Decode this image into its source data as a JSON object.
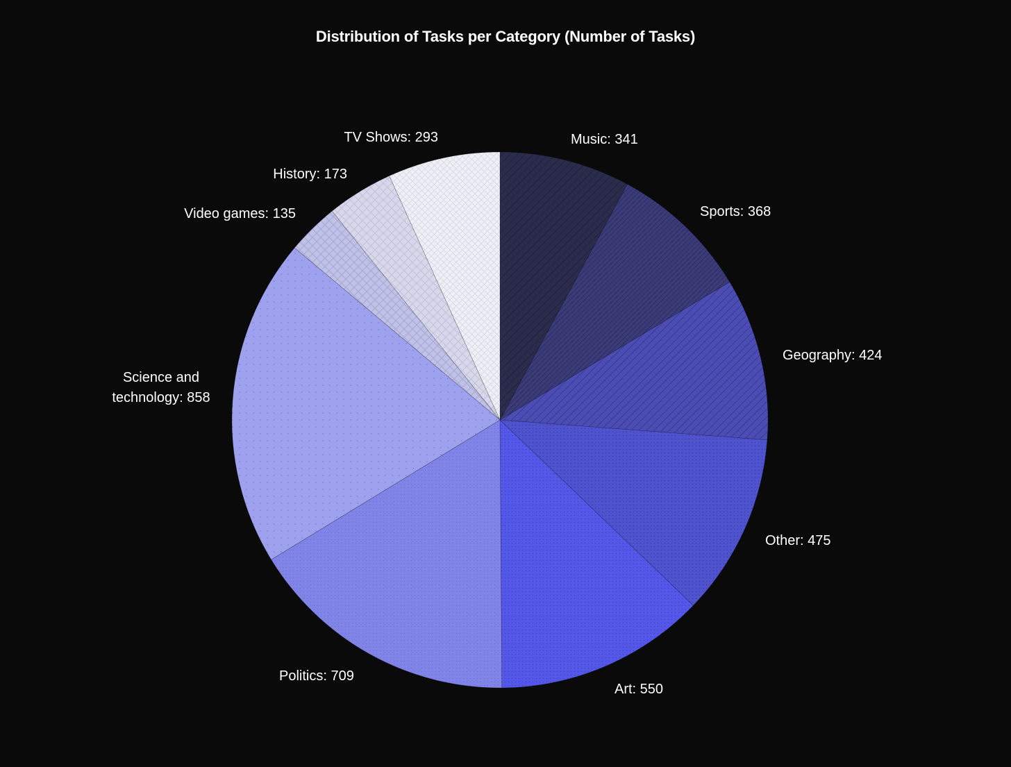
{
  "chart_data": {
    "type": "pie",
    "title": "Distribution of Tasks per Category (Number of Tasks)",
    "slices": [
      {
        "label": "Music: 341",
        "value": 341,
        "color": "#2b2c4c",
        "pattern": "diagonal-sparse"
      },
      {
        "label": "Sports: 368",
        "value": 368,
        "color": "#3a3b78",
        "pattern": "diagonal-dense"
      },
      {
        "label": "Geography: 424",
        "value": 424,
        "color": "#4b4db4",
        "pattern": "diagonal-sparse"
      },
      {
        "label": "Other: 475",
        "value": 475,
        "color": "#4f53cf",
        "pattern": "dots-dense"
      },
      {
        "label": "Art: 550",
        "value": 550,
        "color": "#5458ea",
        "pattern": "dots-dense"
      },
      {
        "label": "Politics: 709",
        "value": 709,
        "color": "#7f84e6",
        "pattern": "dots-fine"
      },
      {
        "label": [
          "Science and",
          "technology: 858"
        ],
        "value": 858,
        "color": "#9ea2ee",
        "pattern": "dots-sparse"
      },
      {
        "label": "Video games: 135",
        "value": 135,
        "color": "#c0c1e6",
        "pattern": "crosshatch-diag"
      },
      {
        "label": "History: 173",
        "value": 173,
        "color": "#d8d8ea",
        "pattern": "grid"
      },
      {
        "label": "TV Shows: 293",
        "value": 293,
        "color": "#eff0f5",
        "pattern": "crosshatch-fine"
      }
    ],
    "start_angle": "12 o'clock",
    "direction": "clockwise",
    "legend": "none"
  }
}
